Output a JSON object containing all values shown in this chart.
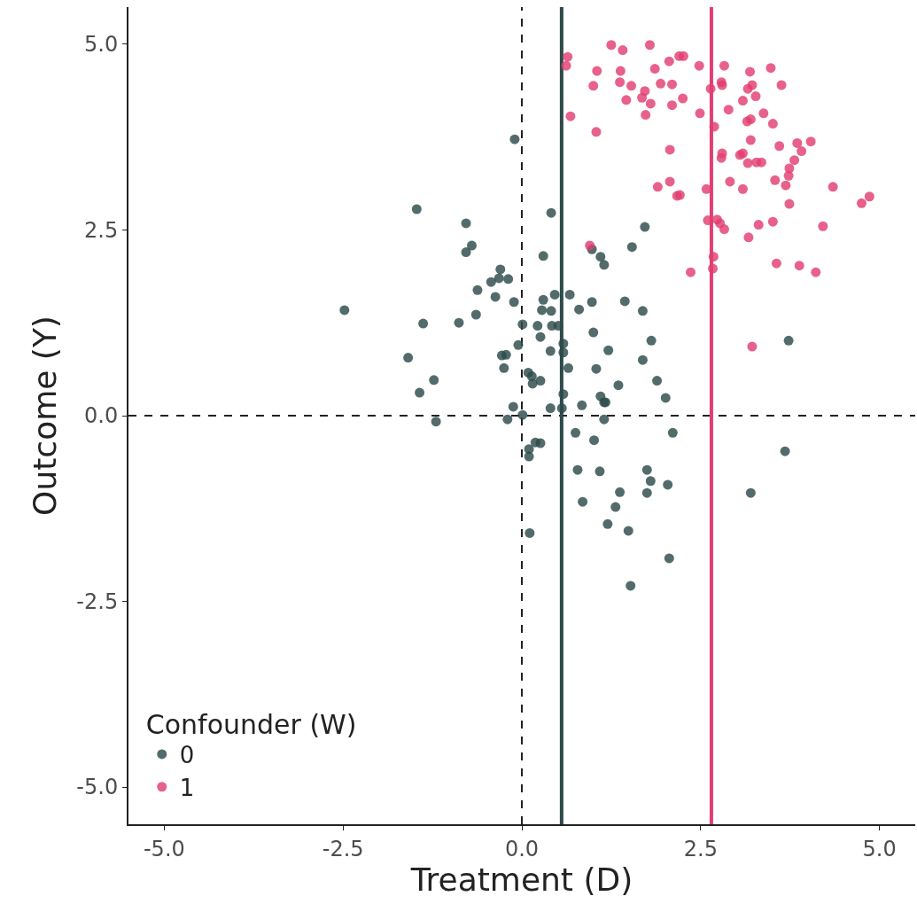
{
  "chart_data": {
    "type": "scatter",
    "xlabel": "Treatment (D)",
    "ylabel": "Outcome (Y)",
    "legend_title": "Confounder (W)",
    "legend": "bottom left",
    "grid": false,
    "marker": "circle",
    "xlim": [
      -5.5,
      5.5
    ],
    "ylim": [
      -5.5,
      5.5
    ],
    "xticks": [
      {
        "value": -5,
        "label": "-5.0"
      },
      {
        "value": -2.5,
        "label": "-2.5"
      },
      {
        "value": 0,
        "label": "0.0"
      },
      {
        "value": 2.5,
        "label": "2.5"
      },
      {
        "value": 5,
        "label": "5.0"
      }
    ],
    "yticks": [
      {
        "value": -5,
        "label": "-5.0"
      },
      {
        "value": -2.5,
        "label": "-2.5"
      },
      {
        "value": 0,
        "label": "0.0"
      },
      {
        "value": 2.5,
        "label": "2.5"
      },
      {
        "value": 5,
        "label": "5.0"
      }
    ],
    "ref_lines": [
      {
        "axis": "x",
        "value": 0,
        "color": "#222222",
        "line_style": "dashed"
      },
      {
        "axis": "y",
        "value": 0,
        "color": "#222222",
        "line_style": "dashed"
      },
      {
        "axis": "x",
        "value": 0.556,
        "color": "#2d4b4a",
        "line_style": "solid"
      },
      {
        "axis": "x",
        "value": 2.65,
        "color": "#e23e72",
        "line_style": "solid"
      }
    ],
    "series": [
      {
        "name": "0",
        "color": "#2d4b4a",
        "x": [
          -0.1,
          -1.47,
          -0.78,
          0.41,
          -0.7,
          -0.78,
          1.72,
          1.54,
          0.98,
          1.1,
          1.15,
          0.3,
          -0.3,
          -0.32,
          -0.43,
          -0.19,
          -0.62,
          -0.37,
          -2.48,
          -0.11,
          0.3,
          0.46,
          0.67,
          0.98,
          1.44,
          0.8,
          0.28,
          0.41,
          1.69,
          -0.64,
          -1.38,
          -0.88,
          0.01,
          0.22,
          0.42,
          0.51,
          0.26,
          1.0,
          1.81,
          0.58,
          -0.05,
          0.4,
          1.21,
          0.58,
          -0.28,
          -0.22,
          -1.59,
          -0.25,
          0.65,
          1.69,
          1.04,
          0.09,
          0.14,
          0.26,
          0.15,
          -1.23,
          1.35,
          -1.43,
          1.89,
          2.01,
          0.58,
          1.1,
          1.15,
          1.17,
          -0.12,
          0.4,
          0.56,
          0.84,
          0.01,
          -1.2,
          -0.2,
          1.15,
          0.75,
          2.11,
          1.01,
          0.19,
          0.26,
          0.1,
          0.1,
          0.78,
          1.09,
          1.75,
          3.68,
          1.8,
          2.04,
          1.37,
          1.75,
          3.2,
          0.85,
          1.31,
          1.2,
          0.11,
          1.49,
          2.06,
          1.52,
          3.73
        ],
        "values": [
          3.72,
          2.78,
          2.59,
          2.73,
          2.29,
          2.2,
          2.54,
          2.27,
          2.24,
          2.14,
          2.03,
          2.15,
          1.97,
          1.85,
          1.8,
          1.84,
          1.69,
          1.6,
          1.42,
          1.53,
          1.56,
          1.63,
          1.63,
          1.53,
          1.54,
          1.43,
          1.42,
          1.41,
          1.41,
          1.36,
          1.24,
          1.25,
          1.23,
          1.21,
          1.21,
          1.21,
          1.06,
          1.12,
          1.01,
          0.97,
          0.95,
          0.87,
          0.88,
          0.85,
          0.81,
          0.82,
          0.78,
          0.64,
          0.64,
          0.75,
          0.63,
          0.58,
          0.53,
          0.47,
          0.43,
          0.48,
          0.41,
          0.31,
          0.47,
          0.24,
          0.29,
          0.26,
          0.18,
          0.18,
          0.12,
          0.1,
          0.1,
          0.14,
          0.01,
          -0.08,
          -0.05,
          -0.05,
          -0.23,
          -0.23,
          -0.33,
          -0.36,
          -0.37,
          -0.45,
          -0.55,
          -0.73,
          -0.75,
          -0.73,
          -0.48,
          -0.88,
          -0.93,
          -1.03,
          -1.04,
          -1.04,
          -1.16,
          -1.23,
          -1.46,
          -1.58,
          -1.55,
          -1.92,
          -2.29,
          1.01
        ]
      },
      {
        "name": "1",
        "color": "#e23e72",
        "x": [
          2.64,
          2.79,
          2.8,
          3.16,
          3.22,
          3.27,
          3.09,
          2.89,
          2.49,
          2.69,
          3.15,
          3.2,
          3.38,
          3.51,
          3.63,
          3.48,
          3.19,
          2.83,
          2.48,
          1.04,
          0.68,
          1.73,
          2.1,
          2.25,
          1.8,
          1.46,
          1.72,
          1.68,
          1.53,
          1.37,
          1.94,
          2.1,
          1.0,
          1.05,
          1.38,
          1.86,
          2.06,
          2.2,
          2.26,
          1.25,
          1.41,
          1.79,
          0.64,
          0.62,
          2.07,
          2.8,
          2.79,
          3.05,
          3.09,
          3.16,
          3.28,
          3.35,
          3.2,
          3.6,
          3.85,
          4.04,
          3.91,
          3.81,
          3.74,
          3.73,
          3.54,
          3.69,
          3.74,
          4.35,
          4.75,
          4.86,
          2.91,
          3.09,
          2.58,
          2.07,
          1.9,
          2.17,
          2.21,
          2.6,
          2.73,
          2.77,
          2.83,
          3.31,
          3.51,
          4.21,
          3.17,
          0.95,
          2.68,
          2.67,
          2.36,
          3.56,
          3.88,
          4.11,
          3.22
        ],
        "values": [
          4.4,
          4.49,
          4.45,
          4.4,
          4.45,
          4.3,
          4.24,
          4.12,
          4.07,
          3.89,
          3.96,
          3.99,
          4.07,
          3.93,
          4.45,
          4.68,
          4.63,
          4.71,
          4.71,
          3.82,
          4.03,
          4.05,
          4.18,
          4.27,
          4.2,
          4.25,
          4.37,
          4.28,
          4.44,
          4.49,
          4.47,
          4.46,
          4.44,
          4.64,
          4.64,
          4.67,
          4.77,
          4.84,
          4.84,
          4.99,
          4.92,
          4.99,
          4.83,
          4.71,
          3.58,
          3.53,
          3.47,
          3.51,
          3.53,
          3.4,
          3.41,
          3.41,
          3.71,
          3.63,
          3.67,
          3.69,
          3.56,
          3.44,
          3.33,
          3.23,
          3.17,
          3.1,
          2.85,
          3.08,
          2.86,
          2.95,
          3.15,
          3.05,
          3.05,
          3.15,
          3.08,
          2.96,
          2.97,
          2.63,
          2.64,
          2.59,
          2.51,
          2.57,
          2.61,
          2.55,
          2.4,
          2.29,
          2.14,
          1.98,
          1.93,
          2.05,
          2.02,
          1.93,
          0.93
        ]
      }
    ]
  }
}
